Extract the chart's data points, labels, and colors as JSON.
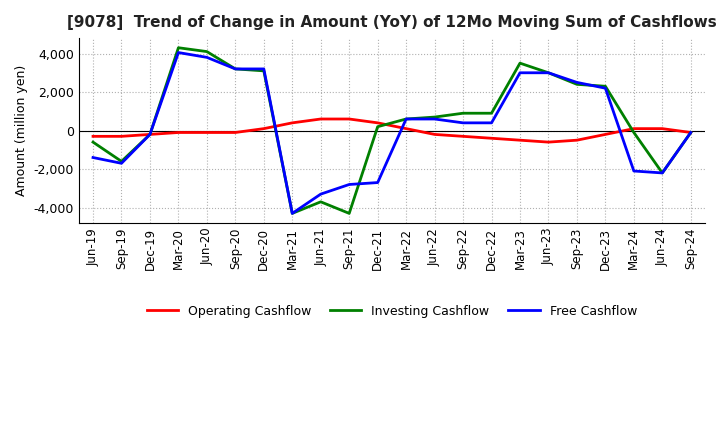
{
  "title": "[9078]  Trend of Change in Amount (YoY) of 12Mo Moving Sum of Cashflows",
  "ylabel": "Amount (million yen)",
  "x_labels": [
    "Jun-19",
    "Sep-19",
    "Dec-19",
    "Mar-20",
    "Jun-20",
    "Sep-20",
    "Dec-20",
    "Mar-21",
    "Jun-21",
    "Sep-21",
    "Dec-21",
    "Mar-22",
    "Jun-22",
    "Sep-22",
    "Dec-22",
    "Mar-23",
    "Jun-23",
    "Sep-23",
    "Dec-23",
    "Mar-24",
    "Jun-24",
    "Sep-24"
  ],
  "operating_cashflow": [
    -300,
    -300,
    -200,
    -100,
    -100,
    -100,
    100,
    400,
    600,
    600,
    400,
    100,
    -200,
    -300,
    -400,
    -500,
    -600,
    -500,
    -200,
    100,
    100,
    -100
  ],
  "investing_cashflow": [
    -600,
    -1600,
    -200,
    4300,
    4100,
    3200,
    3100,
    -4300,
    -3700,
    -4300,
    200,
    600,
    700,
    900,
    900,
    3500,
    3000,
    2400,
    2300,
    -100,
    -2200,
    -100
  ],
  "free_cashflow": [
    -1400,
    -1700,
    -200,
    4050,
    3800,
    3200,
    3200,
    -4300,
    -3300,
    -2800,
    -2700,
    600,
    600,
    400,
    400,
    3000,
    3000,
    2500,
    2200,
    -2100,
    -2200,
    -100
  ],
  "operating_color": "#ff0000",
  "investing_color": "#008000",
  "free_color": "#0000ff",
  "ylim": [
    -4800,
    4800
  ],
  "yticks": [
    -4000,
    -2000,
    0,
    2000,
    4000
  ],
  "background_color": "#ffffff",
  "grid_color": "#b0b0b0"
}
